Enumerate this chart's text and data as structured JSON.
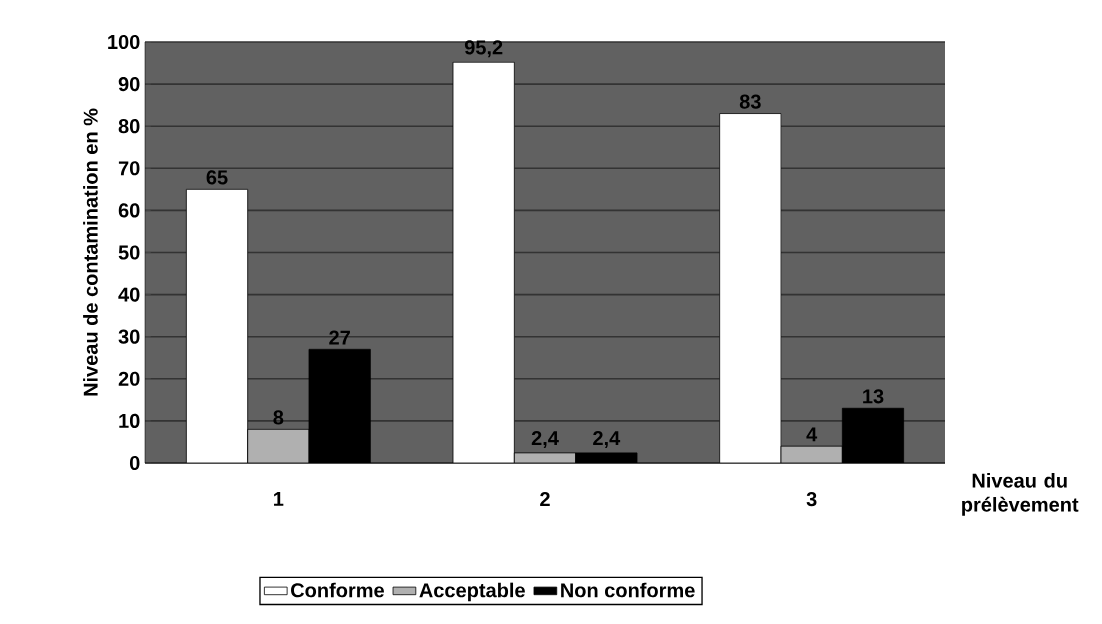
{
  "chart_data": {
    "type": "bar",
    "xlabel": "Niveau du prélèvement",
    "ylabel": "Niveau de contamination en %",
    "categories": [
      "1",
      "2",
      "3"
    ],
    "series": [
      {
        "name": "Conforme",
        "color": "#ffffff",
        "values": [
          65,
          95.2,
          83
        ],
        "value_labels": [
          "65",
          "95,2",
          "83"
        ]
      },
      {
        "name": "Acceptable",
        "color": "#b0b0b0",
        "values": [
          8,
          2.4,
          4
        ],
        "value_labels": [
          "8",
          "2,4",
          "4"
        ]
      },
      {
        "name": "Non conforme",
        "color": "#000000",
        "values": [
          27,
          2.4,
          13
        ],
        "value_labels": [
          "27",
          "2,4",
          "13"
        ]
      }
    ],
    "ylim": [
      0,
      100
    ],
    "yticks": [
      0,
      10,
      20,
      30,
      40,
      50,
      60,
      70,
      80,
      90,
      100
    ],
    "grid": "y",
    "legend": "bottom"
  }
}
